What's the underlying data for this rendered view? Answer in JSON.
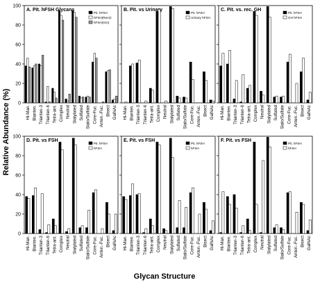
{
  "figure": {
    "y_axis_label": "Relative Abundance (%)",
    "x_axis_label": "Glycan Structure"
  },
  "chart_data": [
    {
      "type": "bar",
      "title": "A. Pit. hFSH Glycans",
      "categories": [
        "Hi-Man.",
        "Bianten.",
        "Trianten-3",
        "Trianten-6",
        "Tetra-ant.",
        "Complex",
        "Neutral",
        "Sialylated",
        "Sulfated",
        "Sialo/Sulfate",
        "Core-Fuc.",
        "Anten.-Fuc.",
        "Bisect",
        "GalNAc"
      ],
      "ylim": [
        0,
        100
      ],
      "legend_position": "top-right",
      "series": [
        {
          "name": "Pit. hFSH",
          "fill": "#000000",
          "values": [
            38,
            36,
            40,
            1,
            15,
            95,
            4,
            95,
            7,
            6,
            42,
            0,
            32,
            3
          ]
        },
        {
          "name": "hFSH(Renz)",
          "fill": "#ffffff",
          "values": [
            46,
            38,
            38,
            17,
            11,
            90,
            2,
            93,
            5,
            7,
            51,
            0,
            33,
            4
          ]
        },
        {
          "name": "hFSH(Grn)",
          "fill": "#9a9a9a",
          "values": [
            37,
            40,
            49,
            1,
            5,
            85,
            9,
            88,
            6,
            6,
            46,
            1,
            34,
            7
          ]
        }
      ]
    },
    {
      "type": "bar",
      "title": "B. Pit. vs Urinary",
      "categories": [
        "Hi-Man.",
        "Bianten.",
        "Trianten-3",
        "Trianten-6",
        "Tetra-ant.",
        "Complex",
        "Neutral",
        "Sialylated",
        "Sulfated",
        "Sialo/Sulfate",
        "Core-Fuc.",
        "Anten.-Fuc.",
        "Bisect",
        "GalNAc"
      ],
      "ylim": [
        0,
        100
      ],
      "legend_position": "top-right",
      "series": [
        {
          "name": "Pit. hFSH",
          "fill": "#000000",
          "values": [
            0,
            38,
            41,
            0,
            15,
            94,
            0,
            99,
            7,
            6,
            42,
            0,
            32,
            3
          ]
        },
        {
          "name": "Urinary hFSH",
          "fill": "#ffffff",
          "values": [
            1,
            40,
            44,
            2,
            13,
            96,
            2,
            97,
            5,
            5,
            24,
            0,
            23,
            2
          ]
        }
      ]
    },
    {
      "type": "bar",
      "title": "C. Pit. vs. rec. GH",
      "categories": [
        "Hi-Man.",
        "Bianten.",
        "Trianten-3",
        "Trianten-6",
        "Tetra-ant.",
        "Complex",
        "Neutral",
        "Sialylated",
        "Sulfated",
        "Sialo/Sulfate",
        "Core-Fuc.",
        "Anten.-Fuc.",
        "Bisect",
        "GalNAc"
      ],
      "ylim": [
        0,
        100
      ],
      "legend_position": "top-right",
      "series": [
        {
          "name": "Pit. hFSH",
          "fill": "#000000",
          "values": [
            38,
            40,
            4,
            1,
            15,
            94,
            12,
            99,
            6,
            6,
            42,
            0,
            32,
            3
          ]
        },
        {
          "name": "GH hFSH",
          "fill": "#ffffff",
          "values": [
            51,
            54,
            23,
            29,
            18,
            90,
            8,
            88,
            7,
            7,
            50,
            20,
            46,
            11
          ]
        }
      ]
    },
    {
      "type": "bar",
      "title": "D. Pit. vs FSH",
      "categories": [
        "Hi-Man.",
        "Bianten.",
        "Trianten-3",
        "Trianten-6",
        "Tetra-ant.",
        "Complex",
        "Neutral",
        "Sialylated",
        "Sulfated",
        "Sialo/Sulfate",
        "Core-Fuc.",
        "Anten.-Fuc.",
        "Bisect",
        "GalNAc"
      ],
      "ylim": [
        0,
        100
      ],
      "legend_position": "top-right",
      "series": [
        {
          "name": "Pit. hFSH",
          "fill": "#000000",
          "values": [
            38,
            39,
            4,
            1,
            15,
            94,
            2,
            98,
            6,
            6,
            42,
            0,
            32,
            3
          ]
        },
        {
          "name": "hFSH",
          "fill": "#ffffff",
          "values": [
            36,
            47,
            41,
            9,
            8,
            86,
            5,
            91,
            8,
            24,
            45,
            5,
            20,
            20
          ]
        }
      ]
    },
    {
      "type": "bar",
      "title": "E. Pit. vs FSH",
      "categories": [
        "Hi-Man.",
        "Bianten.",
        "Trianten-3",
        "Trianten-6",
        "Tetra-ant.",
        "Complex",
        "Neutral",
        "Sialylated",
        "Sulfated",
        "Sialo/Sulfate",
        "Core-Fuc.",
        "Anten.-Fuc.",
        "Bisect",
        "GalNAc"
      ],
      "ylim": [
        0,
        100
      ],
      "legend_position": "top-right",
      "series": [
        {
          "name": "Pit. hFSH",
          "fill": "#000000",
          "values": [
            38,
            39,
            40,
            1,
            15,
            94,
            5,
            98,
            6,
            6,
            42,
            0,
            32,
            3
          ]
        },
        {
          "name": "hFSH",
          "fill": "#ffffff",
          "values": [
            35,
            51,
            41,
            5,
            8,
            91,
            3,
            78,
            34,
            27,
            47,
            20,
            25,
            13
          ]
        }
      ]
    },
    {
      "type": "bar",
      "title": "F. Pit. vs FSH",
      "categories": [
        "Hi-Man.",
        "Bianten.",
        "Trianten-3",
        "Trianten-6",
        "Tetra-ant.",
        "Complex",
        "Neutral",
        "Sialylated",
        "Sulfated",
        "Sialo/Sulfate",
        "Core-Fuc.",
        "Anten.-Fuc.",
        "Bisect",
        "GalNAc"
      ],
      "ylim": [
        0,
        100
      ],
      "legend_position": "top-right",
      "series": [
        {
          "name": "Pit. hFSH",
          "fill": "#000000",
          "values": [
            1,
            38,
            40,
            1,
            15,
            94,
            1,
            99,
            6,
            6,
            42,
            0,
            32,
            3
          ]
        },
        {
          "name": "hFSH",
          "fill": "#ffffff",
          "values": [
            43,
            30,
            26,
            8,
            3,
            30,
            75,
            89,
            9,
            4,
            43,
            22,
            30,
            14
          ]
        }
      ]
    }
  ]
}
